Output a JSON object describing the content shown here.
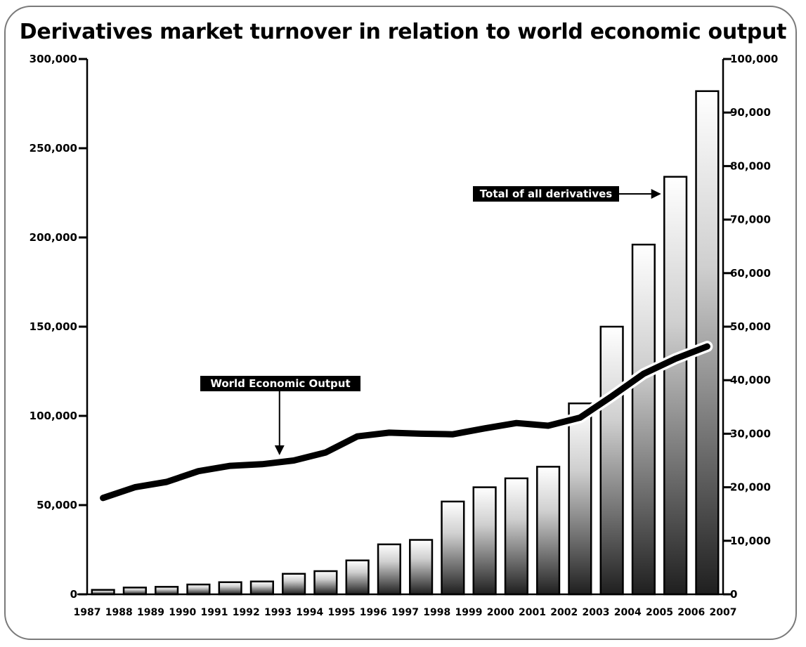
{
  "chart_data": {
    "type": "bar",
    "title": "Derivatives market turnover in relation to world economic output",
    "x": [
      "1987",
      "1988",
      "1989",
      "1990",
      "1991",
      "1992",
      "1993",
      "1994",
      "1995",
      "1996",
      "1997",
      "1998",
      "1999",
      "2000",
      "2001",
      "2002",
      "2003",
      "2004",
      "2005",
      "2006",
      "2007"
    ],
    "categories": [
      "1987",
      "1988",
      "1989",
      "1990",
      "1991",
      "1992",
      "1993",
      "1994",
      "1995",
      "1996",
      "1997",
      "1998",
      "1999",
      "2000",
      "2001",
      "2002",
      "2003",
      "2004",
      "2005",
      "2006"
    ],
    "series": [
      {
        "name": "Total of all derivatives",
        "type": "bar",
        "axis": "left",
        "values": [
          2500,
          3800,
          4200,
          5500,
          6800,
          7200,
          11500,
          13000,
          19000,
          28000,
          30500,
          52000,
          60000,
          65000,
          71500,
          107000,
          150000,
          196000,
          234000,
          282000
        ]
      },
      {
        "name": "World Economic Output",
        "type": "line",
        "axis": "right",
        "values": [
          18000,
          20000,
          21000,
          23000,
          24000,
          24300,
          25000,
          26500,
          29500,
          30200,
          30000,
          29900,
          31000,
          32000,
          31500,
          33000,
          37000,
          41200,
          44000,
          46300
        ]
      }
    ],
    "y_left": {
      "min": 0,
      "max": 300000,
      "ticks": [
        "0",
        "50,000",
        "100,000",
        "150,000",
        "200,000",
        "250,000",
        "300,000"
      ]
    },
    "y_right": {
      "min": 0,
      "max": 100000,
      "ticks": [
        "0",
        "10,000",
        "20,000",
        "30,000",
        "40,000",
        "50,000",
        "60,000",
        "70,000",
        "80,000",
        "90,000",
        "100,000"
      ]
    },
    "annotations": [
      {
        "text": "Total of all derivatives",
        "points_to": "2005"
      },
      {
        "text": "World Economic Output",
        "points_to": "1993"
      }
    ],
    "grid": false,
    "legend": "none"
  }
}
